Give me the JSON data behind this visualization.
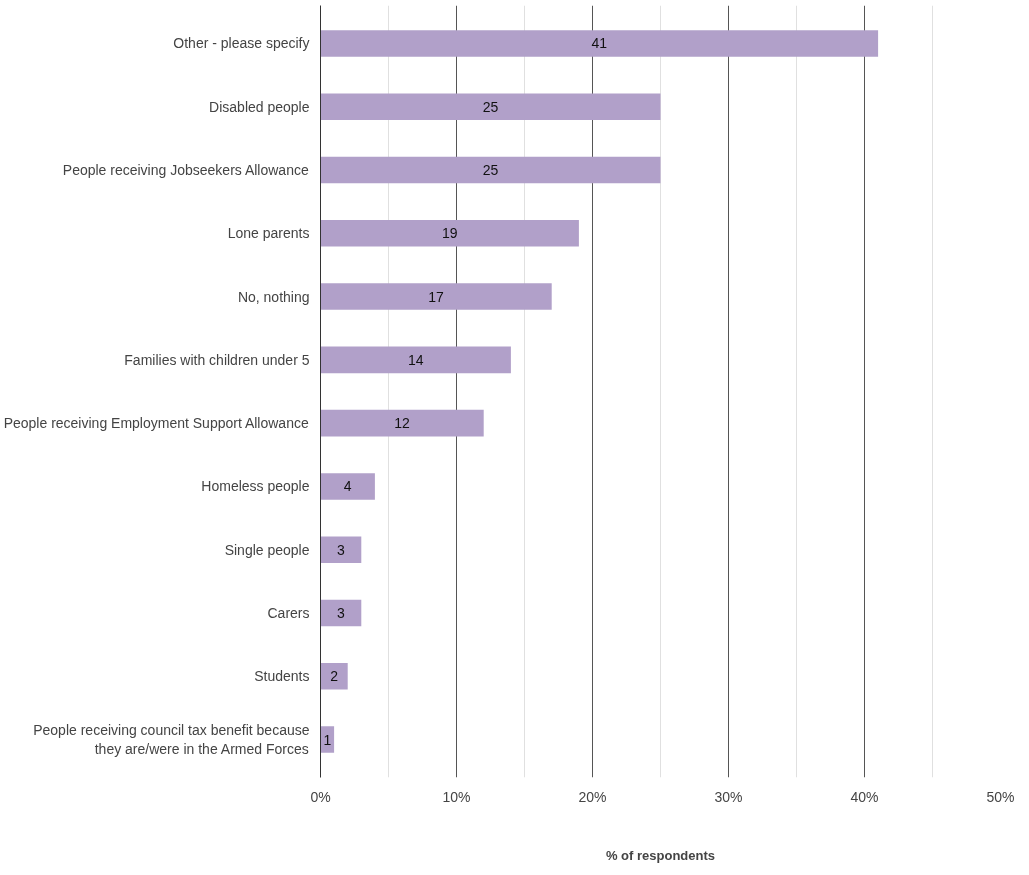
{
  "chart_data": {
    "type": "bar",
    "orientation": "horizontal",
    "xlabel": "% of respondents",
    "categories": [
      "Other - please specify",
      "Disabled people",
      "People receiving Jobseekers Allowance",
      "Lone parents",
      "No, nothing",
      "Families with children under 5",
      "People receiving Employment Support Allowance",
      "Homeless people",
      "Single people",
      "Carers",
      "Students",
      "People receiving council tax benefit because they are/were in the Armed Forces"
    ],
    "values": [
      41,
      25,
      25,
      19,
      17,
      14,
      12,
      4,
      3,
      3,
      2,
      1
    ],
    "color": "#b1a0c9",
    "data_labels": true,
    "grid": "x",
    "xlim": [
      0,
      50
    ],
    "xticks": [
      {
        "value": 0,
        "label": "0%"
      },
      {
        "value": 10,
        "label": "10%"
      },
      {
        "value": 20,
        "label": "20%"
      },
      {
        "value": 30,
        "label": "30%"
      },
      {
        "value": 40,
        "label": "40%"
      },
      {
        "value": 50,
        "label": "50%"
      }
    ]
  }
}
